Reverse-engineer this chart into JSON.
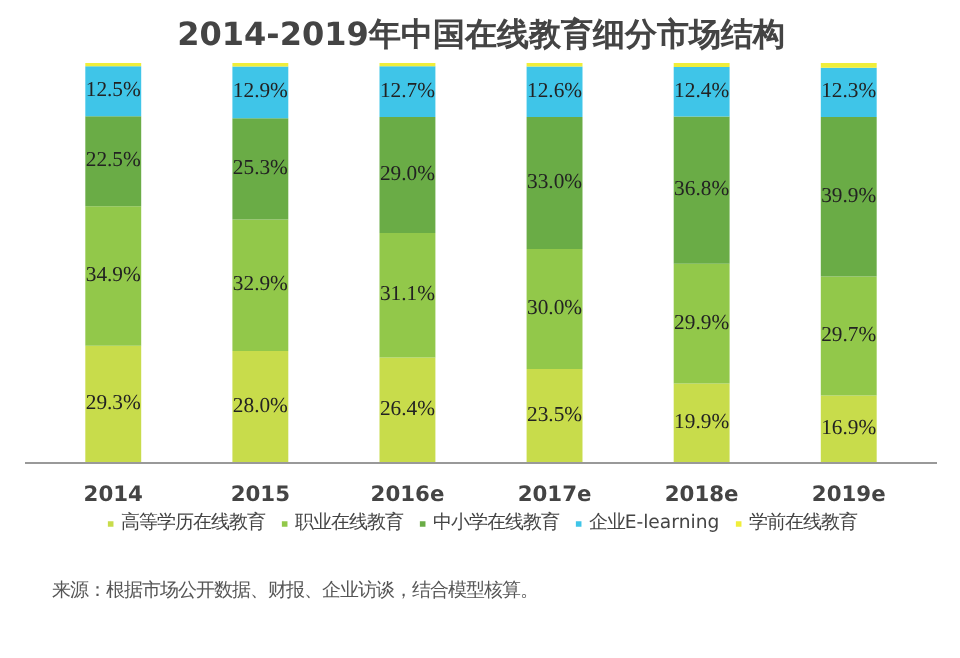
{
  "chart_data": {
    "type": "bar",
    "stacked": true,
    "title": "2014-2019年中国在线教育细分市场结构",
    "categories": [
      "2014",
      "2015",
      "2016e",
      "2017e",
      "2018e",
      "2019e"
    ],
    "series": [
      {
        "name": "高等学历在线教育",
        "color": "#c8dc4b",
        "values": [
          29.3,
          28.0,
          26.4,
          23.5,
          19.9,
          16.9
        ],
        "value_labels": [
          "29.3%",
          "28.0%",
          "26.4%",
          "23.5%",
          "19.9%",
          "16.9%"
        ]
      },
      {
        "name": "职业在线教育",
        "color": "#92c84a",
        "values": [
          34.9,
          32.9,
          31.1,
          30.0,
          29.9,
          29.7
        ],
        "value_labels": [
          "34.9%",
          "32.9%",
          "31.1%",
          "30.0%",
          "29.9%",
          "29.7%"
        ]
      },
      {
        "name": "中小学在线教育",
        "color": "#6aac46",
        "values": [
          22.5,
          25.3,
          29.0,
          33.0,
          36.8,
          39.9
        ],
        "value_labels": [
          "22.5%",
          "25.3%",
          "29.0%",
          "33.0%",
          "36.8%",
          "39.9%"
        ]
      },
      {
        "name": "企业E-learning",
        "color": "#3fc5e8",
        "values": [
          12.5,
          12.9,
          12.7,
          12.6,
          12.4,
          12.3
        ],
        "value_labels": [
          "12.5%",
          "12.9%",
          "12.7%",
          "12.6%",
          "12.4%",
          "12.3%"
        ]
      },
      {
        "name": "学前在线教育",
        "color": "#f0ee3a",
        "values": [
          0.8,
          0.9,
          0.8,
          0.9,
          1.0,
          1.2
        ],
        "value_labels": [
          null,
          null,
          null,
          null,
          null,
          null
        ]
      }
    ],
    "legend": "bottom",
    "ylim": [
      0,
      100
    ],
    "annotations": [
      "来源：根据市场公开数据、财报、企业访谈，结合模型核算。"
    ]
  }
}
